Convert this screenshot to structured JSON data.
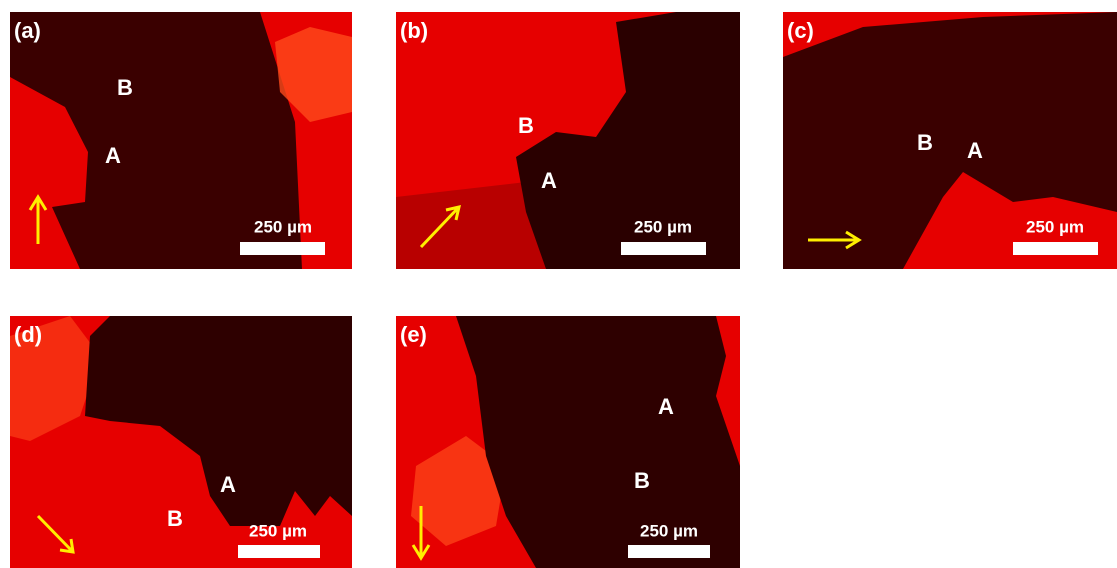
{
  "figure": {
    "panels": [
      {
        "label": "(a)",
        "marks": [
          "B",
          "A"
        ],
        "scale_bar": "250 µm"
      },
      {
        "label": "(b)",
        "marks": [
          "B",
          "A"
        ],
        "scale_bar": "250 µm"
      },
      {
        "label": "(c)",
        "marks": [
          "B",
          "A"
        ],
        "scale_bar": "250 µm"
      },
      {
        "label": "(d)",
        "marks": [
          "A",
          "B"
        ],
        "scale_bar": "250 µm"
      },
      {
        "label": "(e)",
        "marks": [
          "A",
          "B"
        ],
        "scale_bar": "250 µm"
      }
    ]
  }
}
